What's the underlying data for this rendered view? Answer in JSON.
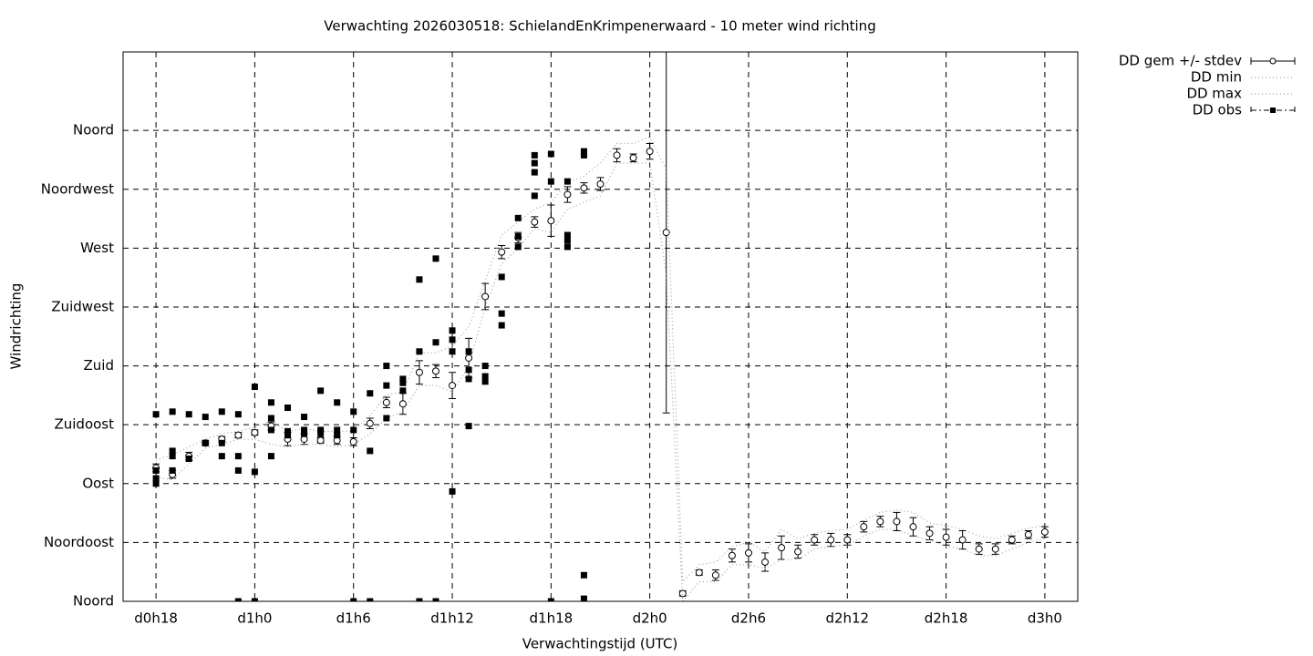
{
  "chart_data": {
    "type": "line",
    "title": "Verwachting 2026030518: SchielandEnKrimpenerwaard - 10 meter wind richting",
    "xlabel": "Verwachtingstijd (UTC)",
    "ylabel": "Windrichting",
    "x": [
      18,
      19,
      20,
      21,
      22,
      23,
      24,
      25,
      26,
      27,
      28,
      29,
      30,
      31,
      32,
      33,
      34,
      35,
      36,
      37,
      38,
      39,
      40,
      41,
      42,
      43,
      44,
      45,
      46,
      47,
      48,
      49,
      50,
      51,
      52,
      53,
      54,
      55,
      56,
      57,
      58,
      59,
      60,
      61,
      62,
      63,
      64,
      65,
      66,
      67,
      68,
      69,
      70,
      71,
      72
    ],
    "series": [
      {
        "name": "DD gem +/- stdev",
        "color": "#000000",
        "style": "errorbar",
        "values": [
          102,
          97,
          111,
          121,
          124,
          127,
          129,
          134,
          124,
          124,
          123,
          123,
          122,
          136,
          152,
          151,
          175,
          176,
          165,
          186,
          233,
          267,
          278,
          290,
          291,
          311,
          316,
          319,
          341,
          339,
          344,
          282,
          6,
          22,
          20,
          35,
          37,
          30,
          41,
          38,
          47,
          47,
          47,
          57,
          61,
          61,
          57,
          52,
          49,
          47,
          40,
          40,
          47,
          51,
          53
        ],
        "errors": [
          3,
          3,
          3,
          2,
          2,
          2,
          2,
          3,
          5,
          4,
          2,
          3,
          3,
          4,
          4,
          8,
          9,
          5,
          10,
          15,
          10,
          5,
          4,
          4,
          12,
          6,
          4,
          5,
          5,
          3,
          6,
          138,
          2,
          2,
          4,
          5,
          7,
          7,
          9,
          5,
          4,
          5,
          4,
          4,
          4,
          7,
          7,
          5,
          6,
          7,
          4,
          4,
          3,
          3,
          4
        ]
      },
      {
        "name": "DD min",
        "color": "#a0a0a0",
        "style": "dotted",
        "values": [
          95,
          93,
          105,
          117,
          120,
          124,
          124,
          120,
          118,
          120,
          120,
          118,
          120,
          128,
          140,
          145,
          165,
          165,
          160,
          180,
          225,
          258,
          270,
          285,
          282,
          300,
          305,
          310,
          335,
          335,
          335,
          250,
          0,
          15,
          15,
          28,
          28,
          25,
          32,
          32,
          40,
          42,
          43,
          50,
          55,
          55,
          50,
          47,
          42,
          40,
          35,
          35,
          40,
          45,
          48
        ]
      },
      {
        "name": "DD max",
        "color": "#a0a0a0",
        "style": "dotted",
        "values": [
          108,
          112,
          118,
          124,
          128,
          130,
          133,
          138,
          130,
          132,
          130,
          130,
          130,
          142,
          158,
          160,
          190,
          190,
          195,
          210,
          245,
          280,
          290,
          300,
          305,
          320,
          325,
          335,
          350,
          350,
          355,
          330,
          15,
          28,
          30,
          42,
          45,
          38,
          55,
          48,
          52,
          54,
          55,
          62,
          68,
          70,
          68,
          60,
          58,
          55,
          50,
          48,
          52,
          56,
          58
        ]
      },
      {
        "name": "DD obs",
        "color": "#000000",
        "style": "points",
        "x": [
          18,
          18,
          18,
          18,
          19,
          19,
          19,
          19,
          20,
          20,
          21,
          21,
          22,
          22,
          22,
          23,
          23,
          23,
          23,
          24,
          24,
          24,
          25,
          25,
          25,
          25,
          26,
          26,
          26,
          27,
          27,
          27,
          28,
          28,
          28,
          29,
          29,
          29,
          30,
          30,
          30,
          31,
          31,
          31,
          32,
          32,
          32,
          33,
          33,
          33,
          34,
          34,
          34,
          35,
          35,
          35,
          36,
          36,
          36,
          36,
          37,
          37,
          37,
          37,
          38,
          38,
          38,
          39,
          39,
          39,
          40,
          40,
          40,
          41,
          41,
          41,
          41,
          42,
          42,
          42,
          43,
          43,
          43,
          43,
          44,
          44,
          44,
          44
        ],
        "values": [
          143,
          100,
          94,
          90,
          145,
          115,
          111,
          100,
          143,
          109,
          141,
          121,
          145,
          121,
          111,
          143,
          111,
          100,
          0,
          164,
          99,
          0,
          152,
          140,
          131,
          111,
          148,
          130,
          127,
          141,
          131,
          128,
          161,
          131,
          128,
          152,
          131,
          127,
          145,
          131,
          0,
          159,
          115,
          0,
          180,
          165,
          140,
          170,
          167,
          161,
          246,
          191,
          0,
          262,
          198,
          0,
          207,
          200,
          191,
          84,
          191,
          177,
          170,
          134,
          180,
          172,
          168,
          248,
          220,
          211,
          293,
          279,
          271,
          341,
          335,
          328,
          310,
          342,
          321,
          0,
          321,
          280,
          276,
          271,
          344,
          341,
          20,
          2
        ]
      }
    ],
    "xlim": [
      16,
      74
    ],
    "ylim": [
      0,
      420
    ],
    "xticks": [
      {
        "value": 18,
        "label": "d0h18"
      },
      {
        "value": 24,
        "label": "d1h0"
      },
      {
        "value": 30,
        "label": "d1h6"
      },
      {
        "value": 36,
        "label": "d1h12"
      },
      {
        "value": 42,
        "label": "d1h18"
      },
      {
        "value": 48,
        "label": "d2h0"
      },
      {
        "value": 54,
        "label": "d2h6"
      },
      {
        "value": 60,
        "label": "d2h12"
      },
      {
        "value": 66,
        "label": "d2h18"
      },
      {
        "value": 72,
        "label": "d3h0"
      }
    ],
    "yticks": [
      {
        "value": 0,
        "label": "Noord"
      },
      {
        "value": 45,
        "label": "Noordoost"
      },
      {
        "value": 90,
        "label": "Oost"
      },
      {
        "value": 135,
        "label": "Zuidoost"
      },
      {
        "value": 180,
        "label": "Zuid"
      },
      {
        "value": 225,
        "label": "Zuidwest"
      },
      {
        "value": 270,
        "label": "West"
      },
      {
        "value": 315,
        "label": "Noordwest"
      },
      {
        "value": 360,
        "label": "Noord"
      }
    ],
    "grid": true,
    "legend": "outside-right"
  }
}
